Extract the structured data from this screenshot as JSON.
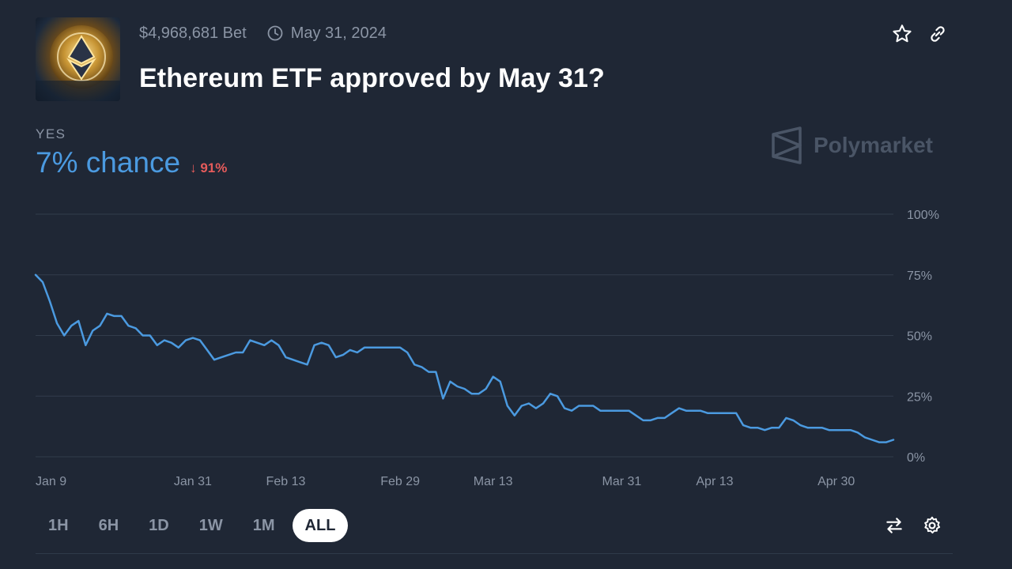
{
  "market": {
    "volume": "$4,968,681 Bet",
    "end_date": "May 31, 2024",
    "title": "Ethereum ETF approved by May 31?",
    "outcome_label": "YES",
    "chance": "7% chance",
    "change": "91%",
    "brand": "Polymarket"
  },
  "icons": {
    "clock": "clock-icon",
    "star": "star-icon",
    "link": "link-icon",
    "delta": "arrow-down-icon",
    "swap": "swap-icon",
    "settings": "gear-icon",
    "brand": "polymarket-logo"
  },
  "ranges": [
    {
      "label": "1H",
      "active": false
    },
    {
      "label": "6H",
      "active": false
    },
    {
      "label": "1D",
      "active": false
    },
    {
      "label": "1W",
      "active": false
    },
    {
      "label": "1M",
      "active": false
    },
    {
      "label": "ALL",
      "active": true
    }
  ],
  "colors": {
    "background": "#1f2735",
    "line": "#4b9ae0",
    "negative": "#e55b5b",
    "muted": "#8b95a5",
    "grid": "#323c4c"
  },
  "chart_data": {
    "type": "line",
    "ylim": [
      0,
      100
    ],
    "yticks": [
      "100%",
      "75%",
      "50%",
      "25%",
      "0%"
    ],
    "ytick_values": [
      100,
      75,
      50,
      25,
      0
    ],
    "xtick_labels": [
      "Jan 9",
      "Jan 31",
      "Feb 13",
      "Feb 29",
      "Mar 13",
      "Mar 31",
      "Apr 13",
      "Apr 30"
    ],
    "xtick_dates": [
      "2024-01-09",
      "2024-01-31",
      "2024-02-13",
      "2024-02-29",
      "2024-03-13",
      "2024-03-31",
      "2024-04-13",
      "2024-04-30"
    ],
    "xlim": [
      "2024-01-09",
      "2024-05-08"
    ],
    "grid": true,
    "series": [
      {
        "points": [
          [
            "2024-01-09",
            75
          ],
          [
            "2024-01-10",
            72
          ],
          [
            "2024-01-11",
            64
          ],
          [
            "2024-01-12",
            55
          ],
          [
            "2024-01-13",
            50
          ],
          [
            "2024-01-14",
            54
          ],
          [
            "2024-01-15",
            56
          ],
          [
            "2024-01-16",
            46
          ],
          [
            "2024-01-17",
            52
          ],
          [
            "2024-01-18",
            54
          ],
          [
            "2024-01-19",
            59
          ],
          [
            "2024-01-20",
            58
          ],
          [
            "2024-01-21",
            58
          ],
          [
            "2024-01-22",
            54
          ],
          [
            "2024-01-23",
            53
          ],
          [
            "2024-01-24",
            50
          ],
          [
            "2024-01-25",
            50
          ],
          [
            "2024-01-26",
            46
          ],
          [
            "2024-01-27",
            48
          ],
          [
            "2024-01-28",
            47
          ],
          [
            "2024-01-29",
            45
          ],
          [
            "2024-01-30",
            48
          ],
          [
            "2024-01-31",
            49
          ],
          [
            "2024-02-01",
            48
          ],
          [
            "2024-02-02",
            44
          ],
          [
            "2024-02-03",
            40
          ],
          [
            "2024-02-04",
            41
          ],
          [
            "2024-02-05",
            42
          ],
          [
            "2024-02-06",
            43
          ],
          [
            "2024-02-07",
            43
          ],
          [
            "2024-02-08",
            48
          ],
          [
            "2024-02-09",
            47
          ],
          [
            "2024-02-10",
            46
          ],
          [
            "2024-02-11",
            48
          ],
          [
            "2024-02-12",
            46
          ],
          [
            "2024-02-13",
            41
          ],
          [
            "2024-02-14",
            40
          ],
          [
            "2024-02-15",
            39
          ],
          [
            "2024-02-16",
            38
          ],
          [
            "2024-02-17",
            46
          ],
          [
            "2024-02-18",
            47
          ],
          [
            "2024-02-19",
            46
          ],
          [
            "2024-02-20",
            41
          ],
          [
            "2024-02-21",
            42
          ],
          [
            "2024-02-22",
            44
          ],
          [
            "2024-02-23",
            43
          ],
          [
            "2024-02-24",
            45
          ],
          [
            "2024-02-25",
            45
          ],
          [
            "2024-02-26",
            45
          ],
          [
            "2024-02-27",
            45
          ],
          [
            "2024-02-28",
            45
          ],
          [
            "2024-02-29",
            45
          ],
          [
            "2024-03-01",
            43
          ],
          [
            "2024-03-02",
            38
          ],
          [
            "2024-03-03",
            37
          ],
          [
            "2024-03-04",
            35
          ],
          [
            "2024-03-05",
            35
          ],
          [
            "2024-03-06",
            24
          ],
          [
            "2024-03-07",
            31
          ],
          [
            "2024-03-08",
            29
          ],
          [
            "2024-03-09",
            28
          ],
          [
            "2024-03-10",
            26
          ],
          [
            "2024-03-11",
            26
          ],
          [
            "2024-03-12",
            28
          ],
          [
            "2024-03-13",
            33
          ],
          [
            "2024-03-14",
            31
          ],
          [
            "2024-03-15",
            21
          ],
          [
            "2024-03-16",
            17
          ],
          [
            "2024-03-17",
            21
          ],
          [
            "2024-03-18",
            22
          ],
          [
            "2024-03-19",
            20
          ],
          [
            "2024-03-20",
            22
          ],
          [
            "2024-03-21",
            26
          ],
          [
            "2024-03-22",
            25
          ],
          [
            "2024-03-23",
            20
          ],
          [
            "2024-03-24",
            19
          ],
          [
            "2024-03-25",
            21
          ],
          [
            "2024-03-26",
            21
          ],
          [
            "2024-03-27",
            21
          ],
          [
            "2024-03-28",
            19
          ],
          [
            "2024-03-29",
            19
          ],
          [
            "2024-03-31",
            19
          ],
          [
            "2024-04-01",
            19
          ],
          [
            "2024-04-02",
            17
          ],
          [
            "2024-04-03",
            15
          ],
          [
            "2024-04-04",
            15
          ],
          [
            "2024-04-05",
            16
          ],
          [
            "2024-04-06",
            16
          ],
          [
            "2024-04-07",
            18
          ],
          [
            "2024-04-08",
            20
          ],
          [
            "2024-04-09",
            19
          ],
          [
            "2024-04-10",
            19
          ],
          [
            "2024-04-11",
            19
          ],
          [
            "2024-04-12",
            18
          ],
          [
            "2024-04-13",
            18
          ],
          [
            "2024-04-14",
            18
          ],
          [
            "2024-04-15",
            18
          ],
          [
            "2024-04-16",
            18
          ],
          [
            "2024-04-17",
            13
          ],
          [
            "2024-04-18",
            12
          ],
          [
            "2024-04-19",
            12
          ],
          [
            "2024-04-20",
            11
          ],
          [
            "2024-04-21",
            12
          ],
          [
            "2024-04-22",
            12
          ],
          [
            "2024-04-23",
            16
          ],
          [
            "2024-04-24",
            15
          ],
          [
            "2024-04-25",
            13
          ],
          [
            "2024-04-26",
            12
          ],
          [
            "2024-04-27",
            12
          ],
          [
            "2024-04-28",
            12
          ],
          [
            "2024-04-29",
            11
          ],
          [
            "2024-04-30",
            11
          ],
          [
            "2024-05-01",
            11
          ],
          [
            "2024-05-02",
            11
          ],
          [
            "2024-05-03",
            10
          ],
          [
            "2024-05-04",
            8
          ],
          [
            "2024-05-05",
            7
          ],
          [
            "2024-05-06",
            6
          ],
          [
            "2024-05-07",
            6
          ],
          [
            "2024-05-08",
            7
          ]
        ]
      }
    ]
  }
}
